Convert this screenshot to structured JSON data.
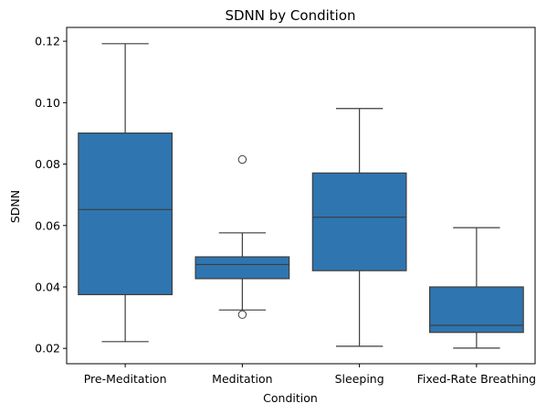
{
  "chart_data": {
    "type": "box",
    "title": "SDNN by Condition",
    "xlabel": "Condition",
    "ylabel": "SDNN",
    "ylim": [
      0.015,
      0.1245
    ],
    "yticks": [
      "0.02",
      "0.04",
      "0.06",
      "0.08",
      "0.10",
      "0.12"
    ],
    "ytick_values": [
      0.02,
      0.04,
      0.06,
      0.08,
      0.1,
      0.12
    ],
    "grid": false,
    "box_color": "#2f75b0",
    "line_color": "#3d3d3d",
    "categories": [
      "Pre-Meditation",
      "Meditation",
      "Sleeping",
      "Fixed-Rate Breathing"
    ],
    "boxes": [
      {
        "whisker_low": 0.0222,
        "q1": 0.0375,
        "median": 0.0652,
        "q3": 0.0901,
        "whisker_high": 0.1192,
        "outliers": []
      },
      {
        "whisker_low": 0.0325,
        "q1": 0.0427,
        "median": 0.0473,
        "q3": 0.0498,
        "whisker_high": 0.0576,
        "outliers": [
          0.0815,
          0.031
        ]
      },
      {
        "whisker_low": 0.0207,
        "q1": 0.0453,
        "median": 0.0627,
        "q3": 0.0771,
        "whisker_high": 0.0981,
        "outliers": []
      },
      {
        "whisker_low": 0.0201,
        "q1": 0.0252,
        "median": 0.0275,
        "q3": 0.04,
        "whisker_high": 0.0593,
        "outliers": []
      }
    ]
  }
}
